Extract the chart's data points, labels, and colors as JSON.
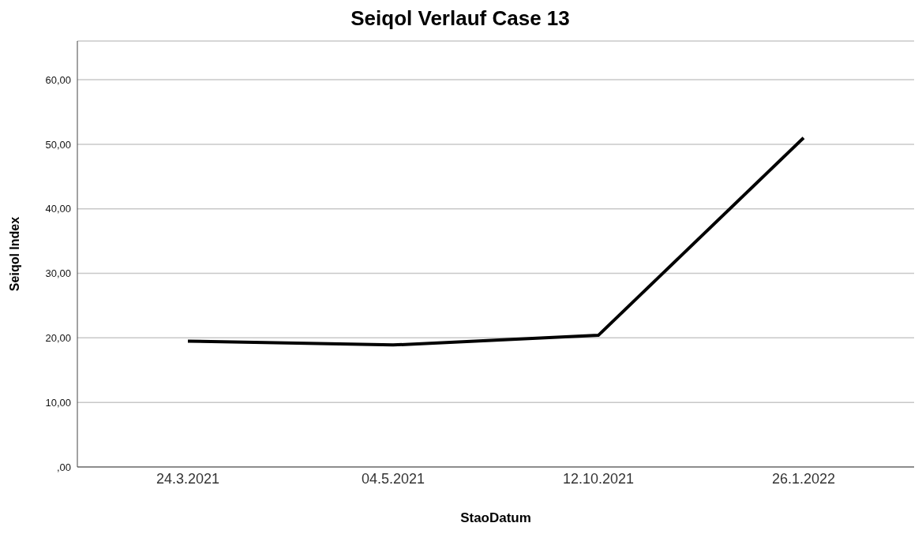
{
  "chart_data": {
    "type": "line",
    "title": "Seiqol Verlauf Case 13",
    "xlabel": "StaoDatum",
    "ylabel": "Seiqol Index",
    "categories": [
      "24.3.2021",
      "04.5.2021",
      "12.10.2021",
      "26.1.2022"
    ],
    "series": [
      {
        "color": "#000000",
        "values": [
          19.5,
          18.9,
          20.4,
          51.0
        ]
      }
    ],
    "ylim": [
      0,
      66
    ],
    "yticks": [
      {
        "value": 0,
        "label": ",00"
      },
      {
        "value": 10,
        "label": "10,00"
      },
      {
        "value": 20,
        "label": "20,00"
      },
      {
        "value": 30,
        "label": "30,00"
      },
      {
        "value": 40,
        "label": "40,00"
      },
      {
        "value": 50,
        "label": "50,00"
      },
      {
        "value": 60,
        "label": "60,00"
      }
    ],
    "grid": "y",
    "marker": "none",
    "line_style": "solid"
  }
}
